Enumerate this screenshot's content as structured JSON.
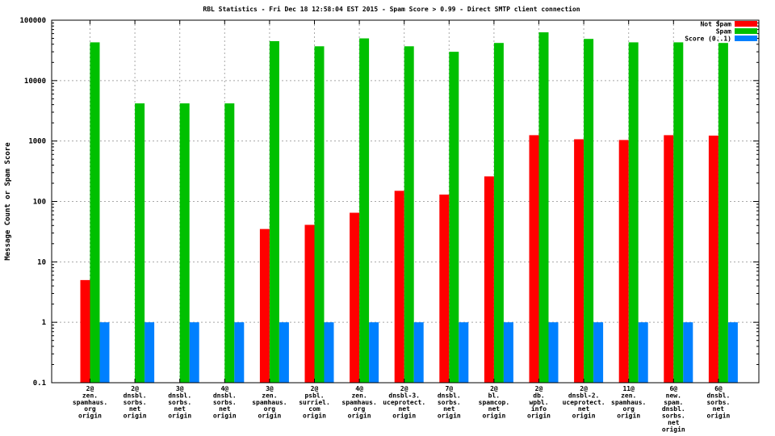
{
  "colors": {
    "background": "#ffffff",
    "axis": "#000000",
    "grid": "#a8a8a8",
    "not_spam": "#ff0000",
    "spam": "#00c000",
    "score": "#0080ff"
  },
  "chart_data": {
    "type": "bar",
    "title": "RBL Statistics - Fri Dec 18 12:58:04 EST 2015 - Spam Score > 0.99 - Direct SMTP client connection",
    "ylabel": "Message Count or Spam Score",
    "yscale": "log",
    "ylim": [
      0.1,
      100000
    ],
    "ytick_labels": [
      "100000",
      "10000",
      "1000",
      "100",
      "10",
      "1",
      "0.1"
    ],
    "grid": true,
    "legend_position": "top-right",
    "categories": [
      [
        "2@",
        "zen.",
        "spamhaus.",
        "org",
        "origin"
      ],
      [
        "2@",
        "dnsbl.",
        "sorbs.",
        "net",
        "origin"
      ],
      [
        "3@",
        "dnsbl.",
        "sorbs.",
        "net",
        "origin"
      ],
      [
        "4@",
        "dnsbl.",
        "sorbs.",
        "net",
        "origin"
      ],
      [
        "3@",
        "zen.",
        "spamhaus.",
        "org",
        "origin"
      ],
      [
        "2@",
        "psbl.",
        "surriel.",
        "com",
        "origin"
      ],
      [
        "4@",
        "zen.",
        "spamhaus.",
        "org",
        "origin"
      ],
      [
        "2@",
        "dnsbl-3.",
        "uceprotect.",
        "net",
        "origin"
      ],
      [
        "7@",
        "dnsbl.",
        "sorbs.",
        "net",
        "origin"
      ],
      [
        "2@",
        "bl.",
        "spamcop.",
        "net",
        "origin"
      ],
      [
        "2@",
        "db.",
        "wpbl.",
        "info",
        "origin"
      ],
      [
        "2@",
        "dnsbl-2.",
        "uceprotect.",
        "net",
        "origin"
      ],
      [
        "11@",
        "zen.",
        "spamhaus.",
        "org",
        "origin"
      ],
      [
        "6@",
        "new.",
        "spam.",
        "dnsbl.",
        "sorbs.",
        "net",
        "origin"
      ],
      [
        "6@",
        "dnsbl.",
        "sorbs.",
        "net",
        "origin"
      ]
    ],
    "series": [
      {
        "name": "Not Spam",
        "color": "#ff0000",
        "values": [
          5,
          0,
          0,
          0,
          35,
          41,
          65,
          150,
          130,
          260,
          1250,
          1070,
          1040,
          1250,
          1230
        ]
      },
      {
        "name": "Spam",
        "color": "#00c000",
        "values": [
          43000,
          4200,
          4200,
          4200,
          45000,
          37000,
          50000,
          37000,
          30000,
          42000,
          63000,
          49000,
          43000,
          43000,
          42000
        ]
      },
      {
        "name": "Score (0..1)",
        "color": "#0080ff",
        "values": [
          1,
          1,
          1,
          1,
          1,
          1,
          1,
          1,
          1,
          1,
          1,
          1,
          1,
          1,
          1
        ]
      }
    ]
  }
}
